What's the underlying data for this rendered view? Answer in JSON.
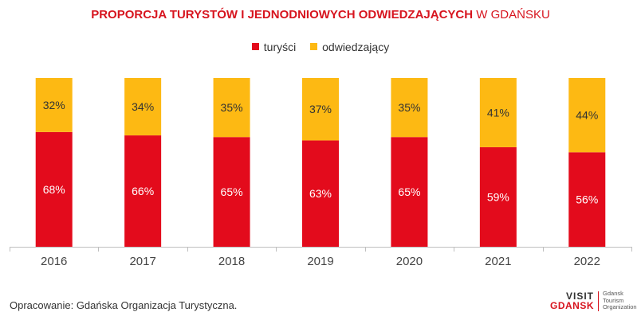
{
  "title": {
    "bold_part": "PROPORCJA TURYSTÓW I JEDNODNIOWYCH ODWIEDZAJĄCYCH",
    "light_part": " W GDAŃSKU"
  },
  "colors": {
    "tourists": "#e30b1c",
    "visitors": "#fdb913",
    "title": "#d7141e",
    "axis": "#bfbfbf",
    "text": "#333333"
  },
  "chart_data": {
    "type": "bar",
    "stacked": true,
    "percent_stacked": true,
    "title": "PROPORCJA TURYSTÓW I JEDNODNIOWYCH ODWIEDZAJĄCYCH W GDAŃSKU",
    "categories": [
      "2016",
      "2017",
      "2018",
      "2019",
      "2020",
      "2021",
      "2022"
    ],
    "series": [
      {
        "name": "turyści",
        "values": [
          68,
          66,
          65,
          63,
          65,
          59,
          56
        ],
        "labels": [
          "68%",
          "66%",
          "65%",
          "63%",
          "65%",
          "59%",
          "56%"
        ]
      },
      {
        "name": "odwiedzający",
        "values": [
          32,
          34,
          35,
          37,
          35,
          41,
          44
        ],
        "labels": [
          "32%",
          "34%",
          "35%",
          "37%",
          "35%",
          "41%",
          "44%"
        ]
      }
    ],
    "ylim": [
      0,
      100
    ],
    "legend_position": "top-center",
    "grid": false
  },
  "source": "Opracowanie: Gdańska Organizacja Turystyczna.",
  "logo": {
    "visit": "VISIT",
    "gdansk": "GDANSK",
    "lines": [
      "Gdansk",
      "Tourism",
      "Organization"
    ]
  }
}
